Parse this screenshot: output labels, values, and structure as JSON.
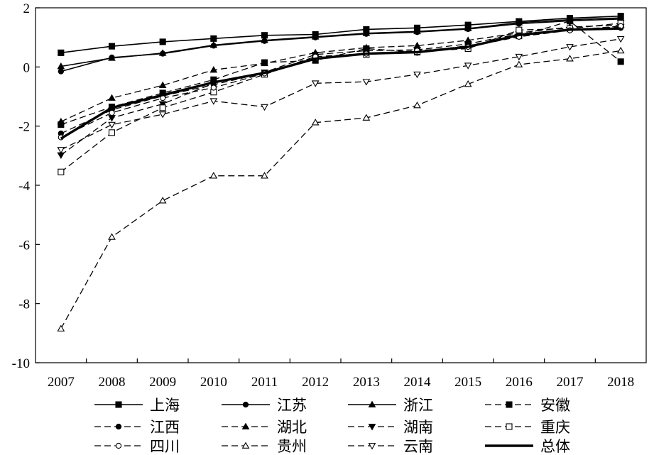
{
  "chart_data": {
    "type": "line",
    "title": "",
    "xlabel": "",
    "ylabel": "",
    "x": [
      "2007",
      "2008",
      "2009",
      "2010",
      "2011",
      "2012",
      "2013",
      "2014",
      "2015",
      "2016",
      "2017",
      "2018"
    ],
    "ylim": [
      -10,
      2
    ],
    "yticks": [
      2,
      0,
      -2,
      -4,
      -6,
      -8,
      -10
    ],
    "grid": false,
    "legend_position": "bottom",
    "series": [
      {
        "name": "上海",
        "style": "solid",
        "marker": "square",
        "filled": true,
        "width": 1.6,
        "values": [
          0.48,
          0.7,
          0.85,
          0.96,
          1.07,
          1.1,
          1.27,
          1.32,
          1.42,
          1.54,
          1.65,
          1.72
        ]
      },
      {
        "name": "江苏",
        "style": "solid",
        "marker": "circle",
        "filled": true,
        "width": 1.6,
        "values": [
          -0.15,
          0.32,
          0.45,
          0.72,
          0.88,
          1.0,
          1.12,
          1.18,
          1.28,
          1.46,
          1.56,
          1.62
        ]
      },
      {
        "name": "浙江",
        "style": "solid",
        "marker": "triangle",
        "filled": true,
        "width": 1.6,
        "values": [
          0.02,
          0.3,
          0.47,
          0.74,
          0.9,
          1.02,
          1.14,
          1.2,
          1.3,
          1.5,
          1.6,
          1.66
        ]
      },
      {
        "name": "安徽",
        "style": "dashed",
        "marker": "square",
        "filled": true,
        "width": 1.3,
        "values": [
          -1.95,
          -1.35,
          -0.88,
          -0.43,
          0.15,
          0.22,
          0.62,
          0.5,
          0.72,
          1.05,
          1.55,
          0.18
        ]
      },
      {
        "name": "江西",
        "style": "dashed",
        "marker": "circle",
        "filled": true,
        "width": 1.3,
        "values": [
          -2.25,
          -1.45,
          -0.98,
          -0.6,
          -0.2,
          0.3,
          0.45,
          0.48,
          0.68,
          1.1,
          1.28,
          1.32
        ]
      },
      {
        "name": "湖北",
        "style": "dashed",
        "marker": "triangle",
        "filled": true,
        "width": 1.3,
        "values": [
          -1.85,
          -1.05,
          -0.62,
          -0.1,
          0.12,
          0.48,
          0.65,
          0.72,
          0.9,
          1.15,
          1.35,
          1.42
        ]
      },
      {
        "name": "湖南",
        "style": "dashed",
        "marker": "tridown",
        "filled": true,
        "width": 1.3,
        "values": [
          -2.98,
          -1.72,
          -1.25,
          -0.55,
          -0.18,
          0.42,
          0.55,
          0.58,
          0.78,
          1.12,
          1.25,
          1.36
        ]
      },
      {
        "name": "重庆",
        "style": "dashed",
        "marker": "square",
        "filled": false,
        "width": 1.3,
        "values": [
          -3.55,
          -2.22,
          -1.38,
          -0.85,
          -0.25,
          0.32,
          0.42,
          0.52,
          0.62,
          1.25,
          1.3,
          1.48
        ]
      },
      {
        "name": "四川",
        "style": "dashed",
        "marker": "circle",
        "filled": false,
        "width": 1.3,
        "values": [
          -2.38,
          -1.55,
          -1.05,
          -0.7,
          -0.22,
          0.35,
          0.45,
          0.55,
          0.68,
          1.02,
          1.24,
          1.38
        ]
      },
      {
        "name": "贵州",
        "style": "dashed",
        "marker": "triangle",
        "filled": false,
        "width": 1.3,
        "values": [
          -8.85,
          -5.75,
          -4.52,
          -3.68,
          -3.68,
          -1.88,
          -1.72,
          -1.3,
          -0.58,
          0.08,
          0.28,
          0.55
        ]
      },
      {
        "name": "云南",
        "style": "dashed",
        "marker": "tridown",
        "filled": false,
        "width": 1.3,
        "values": [
          -2.8,
          -1.95,
          -1.6,
          -1.15,
          -1.35,
          -0.55,
          -0.5,
          -0.25,
          0.05,
          0.35,
          0.68,
          0.95
        ]
      },
      {
        "name": "总体",
        "style": "solid",
        "marker": "none",
        "filled": false,
        "width": 3.4,
        "values": [
          -2.42,
          -1.38,
          -0.95,
          -0.52,
          -0.2,
          0.28,
          0.45,
          0.5,
          0.68,
          1.08,
          1.26,
          1.3
        ]
      }
    ]
  }
}
